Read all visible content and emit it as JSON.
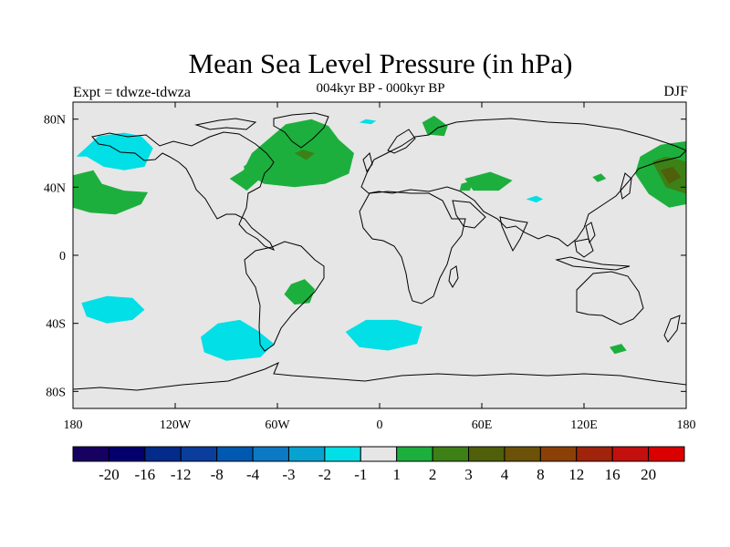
{
  "title": "Mean Sea Level Pressure (in hPa)",
  "subtitle": "004kyr BP - 000kyr BP",
  "experiment": "Expt = tdwze-tdwza",
  "season": "DJF",
  "chart_data": {
    "type": "heatmap",
    "xlim": [
      -180,
      180
    ],
    "ylim": [
      -90,
      90
    ],
    "x_ticks": [
      {
        "value": -180,
        "label": "180"
      },
      {
        "value": -120,
        "label": "120W"
      },
      {
        "value": -60,
        "label": "60W"
      },
      {
        "value": 0,
        "label": "0"
      },
      {
        "value": 60,
        "label": "60E"
      },
      {
        "value": 120,
        "label": "120E"
      },
      {
        "value": 180,
        "label": "180"
      }
    ],
    "y_ticks": [
      {
        "value": 80,
        "label": "80N"
      },
      {
        "value": 40,
        "label": "40N"
      },
      {
        "value": 0,
        "label": "0"
      },
      {
        "value": -40,
        "label": "40S"
      },
      {
        "value": -80,
        "label": "80S"
      }
    ],
    "background_color": "#e6e6e6",
    "colorbar": {
      "colors": [
        "#160060",
        "#03006e",
        "#042a8a",
        "#0a3d9c",
        "#0058b0",
        "#0c79c4",
        "#07a2d0",
        "#03dfe6",
        "#e6e6e6",
        "#1daf3d",
        "#3c8016",
        "#4f5f0a",
        "#6b5208",
        "#8b4008",
        "#9f240b",
        "#c40f0f",
        "#da0000"
      ],
      "labels": [
        "-20",
        "-16",
        "-12",
        "-8",
        "-4",
        "-3",
        "-2",
        "-1",
        "1",
        "2",
        "3",
        "4",
        "8",
        "12",
        "16",
        "20"
      ]
    },
    "anomalies": [
      {
        "level": "-1",
        "color": "#03dfe6",
        "points": [
          [
            -178,
            58
          ],
          [
            -165,
            70
          ],
          [
            -150,
            72
          ],
          [
            -140,
            70
          ],
          [
            -133,
            63
          ],
          [
            -138,
            52
          ],
          [
            -150,
            50
          ],
          [
            -162,
            52
          ],
          [
            -172,
            58
          ]
        ]
      },
      {
        "level": "-1",
        "color": "#03dfe6",
        "points": [
          [
            -175,
            -28
          ],
          [
            -160,
            -24
          ],
          [
            -145,
            -25
          ],
          [
            -138,
            -32
          ],
          [
            -145,
            -38
          ],
          [
            -160,
            -40
          ],
          [
            -172,
            -36
          ]
        ]
      },
      {
        "level": "-1",
        "color": "#03dfe6",
        "points": [
          [
            -105,
            -48
          ],
          [
            -95,
            -40
          ],
          [
            -82,
            -38
          ],
          [
            -72,
            -44
          ],
          [
            -62,
            -52
          ],
          [
            -70,
            -60
          ],
          [
            -90,
            -62
          ],
          [
            -103,
            -57
          ]
        ]
      },
      {
        "level": "-1",
        "color": "#03dfe6",
        "points": [
          [
            -20,
            -45
          ],
          [
            -8,
            -38
          ],
          [
            10,
            -38
          ],
          [
            25,
            -42
          ],
          [
            22,
            -52
          ],
          [
            5,
            -56
          ],
          [
            -12,
            -54
          ]
        ]
      },
      {
        "level": "-1",
        "color": "#03dfe6",
        "points": [
          [
            -12,
            78
          ],
          [
            -8,
            80
          ],
          [
            -2,
            79
          ],
          [
            -5,
            77
          ]
        ]
      },
      {
        "level": "-1",
        "color": "#03dfe6",
        "points": [
          [
            86,
            33
          ],
          [
            92,
            35
          ],
          [
            96,
            33
          ],
          [
            92,
            31
          ]
        ]
      },
      {
        "level": "1",
        "color": "#1daf3d",
        "points": [
          [
            -180,
            47
          ],
          [
            -168,
            50
          ],
          [
            -163,
            42
          ],
          [
            -150,
            38
          ],
          [
            -136,
            37
          ],
          [
            -140,
            30
          ],
          [
            -155,
            24
          ],
          [
            -170,
            25
          ],
          [
            -180,
            28
          ]
        ]
      },
      {
        "level": "1",
        "color": "#1daf3d",
        "points": [
          [
            -75,
            60
          ],
          [
            -55,
            77
          ],
          [
            -40,
            80
          ],
          [
            -30,
            76
          ],
          [
            -24,
            68
          ],
          [
            -15,
            60
          ],
          [
            -18,
            48
          ],
          [
            -32,
            42
          ],
          [
            -50,
            40
          ],
          [
            -68,
            42
          ],
          [
            -80,
            50
          ]
        ]
      },
      {
        "level": "1",
        "color": "#1daf3d",
        "points": [
          [
            -80,
            52
          ],
          [
            -72,
            58
          ],
          [
            -68,
            52
          ],
          [
            -75,
            46
          ]
        ]
      },
      {
        "level": "1",
        "color": "#1daf3d",
        "points": [
          [
            -52,
            -17
          ],
          [
            -44,
            -14
          ],
          [
            -38,
            -20
          ],
          [
            -41,
            -28
          ],
          [
            -50,
            -29
          ],
          [
            -56,
            -23
          ]
        ]
      },
      {
        "level": "1",
        "color": "#1daf3d",
        "points": [
          [
            25,
            78
          ],
          [
            32,
            82
          ],
          [
            40,
            76
          ],
          [
            38,
            70
          ],
          [
            28,
            71
          ]
        ]
      },
      {
        "level": "1",
        "color": "#1daf3d",
        "points": [
          [
            50,
            45
          ],
          [
            65,
            49
          ],
          [
            78,
            44
          ],
          [
            70,
            38
          ],
          [
            55,
            38
          ]
        ]
      },
      {
        "level": "1",
        "color": "#1daf3d",
        "points": [
          [
            48,
            42
          ],
          [
            55,
            44
          ],
          [
            53,
            38
          ],
          [
            47,
            38
          ]
        ]
      },
      {
        "level": "1",
        "color": "#1daf3d",
        "points": [
          [
            125,
            46
          ],
          [
            130,
            48
          ],
          [
            133,
            45
          ],
          [
            128,
            43
          ]
        ]
      },
      {
        "level": "1",
        "color": "#1daf3d",
        "points": [
          [
            153,
            58
          ],
          [
            165,
            65
          ],
          [
            180,
            67
          ],
          [
            180,
            30
          ],
          [
            170,
            28
          ],
          [
            158,
            36
          ],
          [
            150,
            48
          ]
        ]
      },
      {
        "level": "1",
        "color": "#1daf3d",
        "points": [
          [
            135,
            -54
          ],
          [
            142,
            -52
          ],
          [
            145,
            -56
          ],
          [
            138,
            -58
          ]
        ]
      },
      {
        "level": "1",
        "color": "#1daf3d",
        "points": [
          [
            -88,
            45
          ],
          [
            -80,
            50
          ],
          [
            -70,
            45
          ],
          [
            -78,
            38
          ]
        ]
      },
      {
        "level": "2",
        "color": "#3c8016",
        "points": [
          [
            -50,
            60
          ],
          [
            -45,
            62
          ],
          [
            -38,
            60
          ],
          [
            -43,
            56
          ]
        ]
      },
      {
        "level": "2",
        "color": "#3c8016",
        "points": [
          [
            160,
            55
          ],
          [
            168,
            58
          ],
          [
            180,
            55
          ],
          [
            180,
            36
          ],
          [
            168,
            40
          ]
        ]
      },
      {
        "level": "3",
        "color": "#4f5f0a",
        "points": [
          [
            165,
            50
          ],
          [
            172,
            52
          ],
          [
            177,
            46
          ],
          [
            170,
            42
          ]
        ]
      }
    ]
  }
}
